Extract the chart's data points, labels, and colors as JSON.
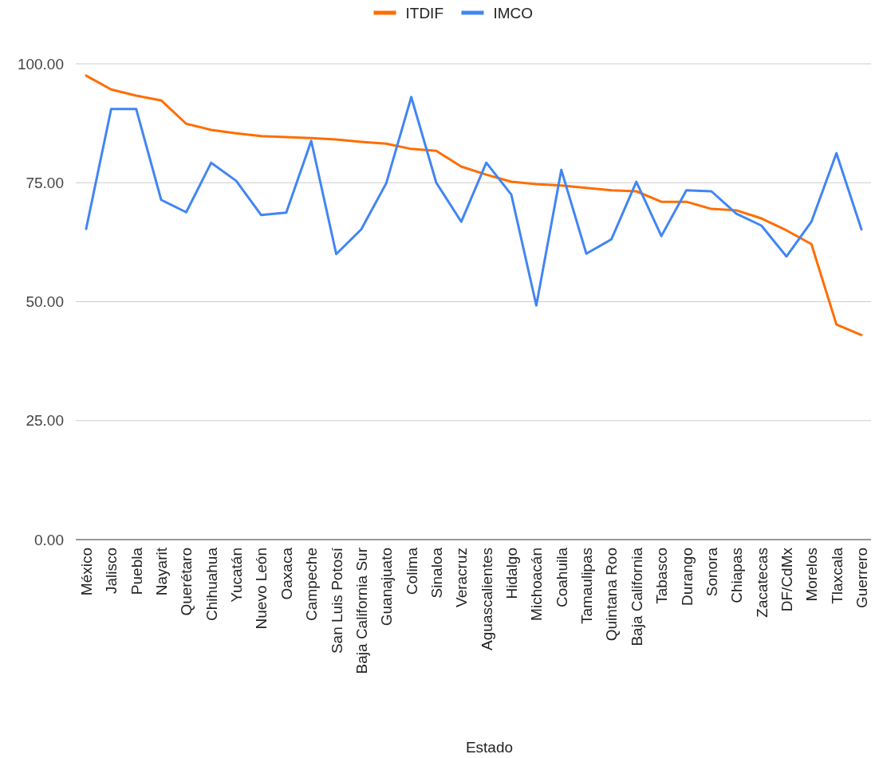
{
  "chart_data": {
    "type": "line",
    "xlabel": "Estado",
    "categories": [
      "México",
      "Jalisco",
      "Puebla",
      "Nayarit",
      "Querétaro",
      "Chihuahua",
      "Yucatán",
      "Nuevo León",
      "Oaxaca",
      "Campeche",
      "San Luis Potosí",
      "Baja California Sur",
      "Guanajuato",
      "Colima",
      "Sinaloa",
      "Veracruz",
      "Aguascalientes",
      "Hidalgo",
      "Michoacán",
      "Coahuila",
      "Tamaulipas",
      "Quintana Roo",
      "Baja California",
      "Tabasco",
      "Durango",
      "Sonora",
      "Chiapas",
      "Zacatecas",
      "DF/CdMx",
      "Morelos",
      "Tlaxcala",
      "Guerrero"
    ],
    "series": [
      {
        "name": "ITDIF",
        "color": "#ff6d00",
        "values": [
          97.5,
          94.6,
          93.3,
          92.3,
          87.4,
          86.1,
          85.4,
          84.8,
          84.6,
          84.4,
          84.1,
          83.6,
          83.2,
          82.1,
          81.7,
          78.4,
          76.7,
          75.2,
          74.7,
          74.4,
          73.9,
          73.4,
          73.2,
          71.0,
          71.0,
          69.5,
          69.2,
          67.5,
          65.0,
          62.1,
          45.2,
          43.0
        ]
      },
      {
        "name": "IMCO",
        "color": "#4285f4",
        "values": [
          65.3,
          90.5,
          90.5,
          71.4,
          68.8,
          79.2,
          75.4,
          68.2,
          68.7,
          83.8,
          60.0,
          65.2,
          74.9,
          93.0,
          75.0,
          66.8,
          79.2,
          72.5,
          49.2,
          77.7,
          60.1,
          63.1,
          75.2,
          63.8,
          73.4,
          73.2,
          68.5,
          66.0,
          59.5,
          66.8,
          81.2,
          65.2
        ]
      }
    ],
    "ylim": [
      0,
      100
    ],
    "yticks": [
      {
        "value": 0,
        "label": "0.00"
      },
      {
        "value": 25,
        "label": "25.00"
      },
      {
        "value": 50,
        "label": "50.00"
      },
      {
        "value": 75,
        "label": "75.00"
      },
      {
        "value": 100,
        "label": "100.00"
      }
    ],
    "grid": "y",
    "legend": "top",
    "marker": "none",
    "line_style": "solid"
  }
}
